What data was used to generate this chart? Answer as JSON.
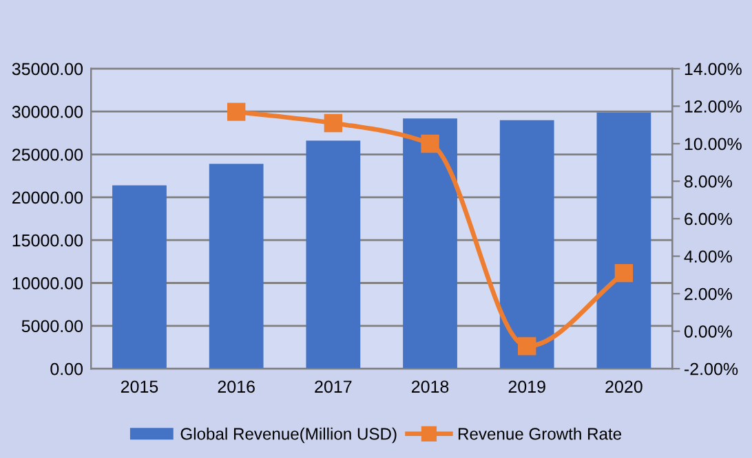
{
  "chart_data": {
    "type": "bar",
    "categories": [
      "2015",
      "2016",
      "2017",
      "2018",
      "2019",
      "2020"
    ],
    "series": [
      {
        "name": "Global Revenue(Million USD)",
        "color": "#4472c4",
        "values": [
          21400,
          23900,
          26600,
          29200,
          29000,
          29900
        ]
      },
      {
        "name": "Revenue Growth Rate",
        "type": "line",
        "axis": "y2",
        "color": "#ed7d31",
        "values": [
          null,
          11.7,
          11.1,
          10.0,
          -0.8,
          3.1
        ]
      }
    ],
    "ylim": [
      0,
      35000
    ],
    "yticks": [
      {
        "value": 0,
        "label": "0.00"
      },
      {
        "value": 5000,
        "label": "5000.00"
      },
      {
        "value": 10000,
        "label": "10000.00"
      },
      {
        "value": 15000,
        "label": "15000.00"
      },
      {
        "value": 20000,
        "label": "20000.00"
      },
      {
        "value": 25000,
        "label": "25000.00"
      },
      {
        "value": 30000,
        "label": "30000.00"
      },
      {
        "value": 35000,
        "label": "35000.00"
      }
    ],
    "y2lim": [
      -2,
      14
    ],
    "y2ticks": [
      {
        "value": -2,
        "label": "-2.00%"
      },
      {
        "value": 0,
        "label": "0.00%"
      },
      {
        "value": 2,
        "label": "2.00%"
      },
      {
        "value": 4,
        "label": "4.00%"
      },
      {
        "value": 6,
        "label": "6.00%"
      },
      {
        "value": 8,
        "label": "8.00%"
      },
      {
        "value": 10,
        "label": "10.00%"
      },
      {
        "value": 12,
        "label": "12.00%"
      },
      {
        "value": 14,
        "label": "14.00%"
      }
    ],
    "grid": "y",
    "legend": "bottom",
    "marker": "square",
    "line_style": "solid"
  }
}
